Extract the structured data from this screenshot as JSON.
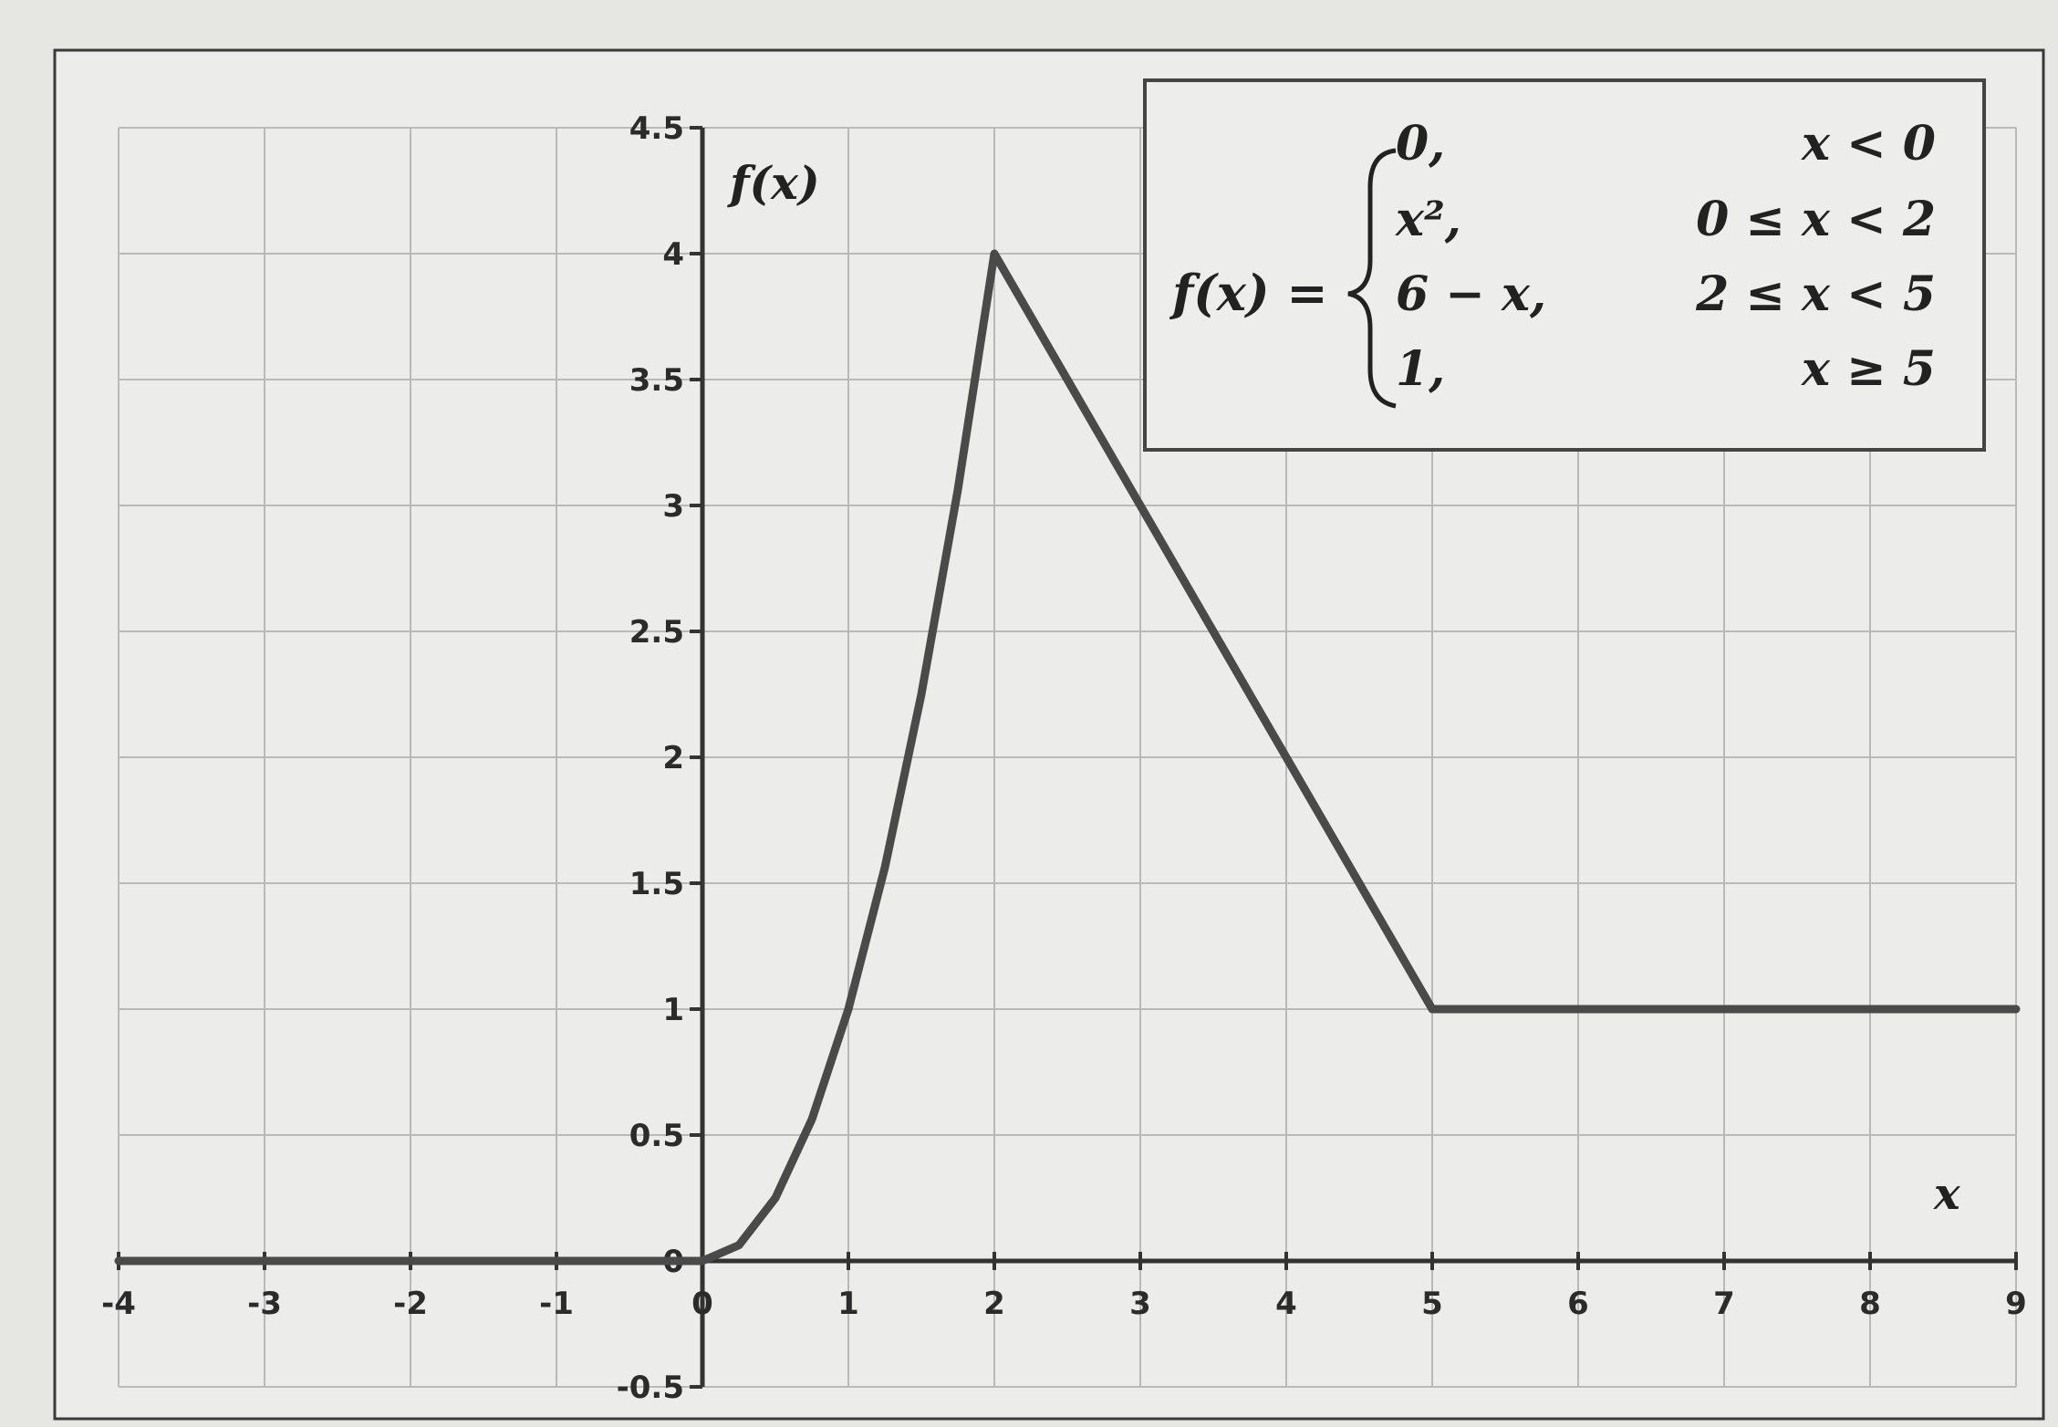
{
  "chart_data": {
    "type": "line",
    "xlim": [
      -4,
      9
    ],
    "ylim": [
      -0.5,
      4.5
    ],
    "x_ticks": [
      "-4",
      "-3",
      "-2",
      "-1",
      "0",
      "1",
      "2",
      "3",
      "4",
      "5",
      "6",
      "7",
      "8",
      "9"
    ],
    "y_ticks": [
      "-0.5",
      "0",
      "0.5",
      "1",
      "1.5",
      "2",
      "2.5",
      "3",
      "3.5",
      "4",
      "4.5"
    ],
    "xlabel": "x",
    "ylabel": "f(x)",
    "grid": true,
    "series": [
      {
        "x": [
          -4,
          0,
          0.25,
          0.5,
          0.75,
          1,
          1.25,
          1.5,
          1.75,
          2,
          3,
          4,
          5,
          9
        ],
        "y": [
          0,
          0,
          0.0625,
          0.25,
          0.5625,
          1,
          1.5625,
          2.25,
          3.0625,
          4,
          3,
          2,
          1,
          1
        ]
      }
    ],
    "legend": {
      "position": "top-right",
      "lhs": "f(x) =",
      "cases": [
        {
          "expr": "0,",
          "cond": "x < 0"
        },
        {
          "expr": "x², ",
          "cond": "0 ≤ x < 2"
        },
        {
          "expr": "6 − x,",
          "cond": "2 ≤ x < 5"
        },
        {
          "expr": "1,",
          "cond": "x ≥ 5"
        }
      ]
    },
    "colors": {
      "line": "#4a4a4a",
      "grid": "#b9b9b9",
      "axis": "#333333"
    }
  }
}
